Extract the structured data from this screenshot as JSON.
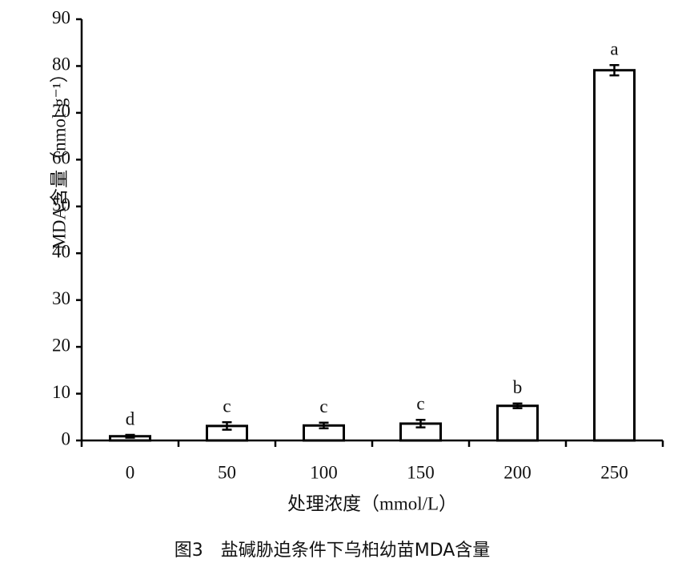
{
  "chart_data": {
    "type": "bar",
    "caption": "图3　盐碱胁迫条件下乌桕幼苗MDA含量",
    "x_label": "处理浓度（mmol/L）",
    "y_label": "MDA含量（nmol·g⁻¹）",
    "categories": [
      "0",
      "50",
      "100",
      "150",
      "200",
      "250"
    ],
    "values": [
      0.9,
      3.1,
      3.2,
      3.6,
      7.4,
      79.1
    ],
    "errors": [
      0.3,
      0.8,
      0.6,
      0.8,
      0.5,
      1.1
    ],
    "significance_letters": [
      "d",
      "c",
      "c",
      "c",
      "b",
      "a"
    ],
    "color": "#ffffff",
    "edge_color": "#000000",
    "ylim": [
      0,
      90
    ],
    "yticks": [
      0,
      10,
      20,
      30,
      40,
      50,
      60,
      70,
      80,
      90
    ],
    "grid": false
  }
}
